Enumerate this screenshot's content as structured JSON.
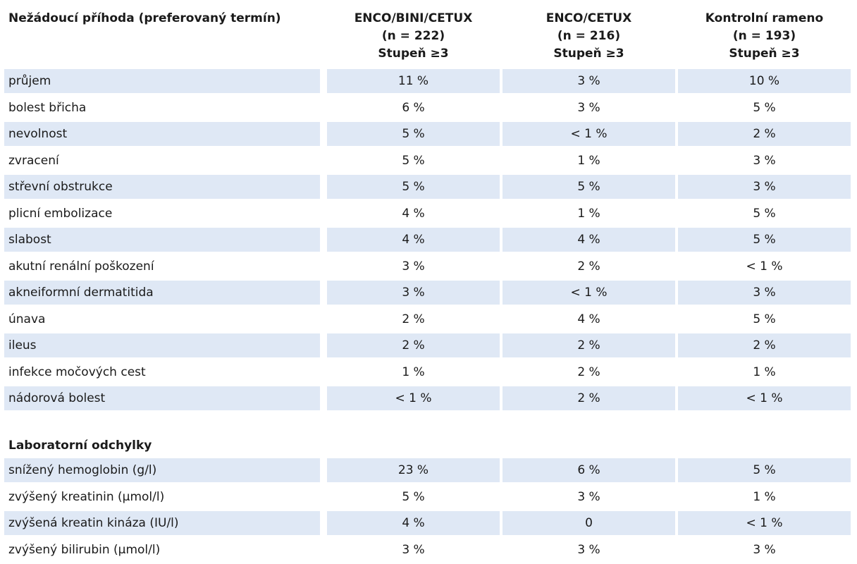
{
  "table": {
    "header": {
      "term": "Nežádoucí příhoda (preferovaný termín)",
      "columns": [
        {
          "line1": "ENCO/BINI/CETUX",
          "line2": "(n = 222)",
          "line3": "Stupeň ≥3"
        },
        {
          "line1": "ENCO/CETUX",
          "line2": "(n = 216)",
          "line3": "Stupeň ≥3"
        },
        {
          "line1": "Kontrolní rameno",
          "line2": "(n = 193)",
          "line3": "Stupeň ≥3"
        }
      ]
    },
    "rows": [
      {
        "name": "průjem",
        "v1": "11 %",
        "v2": "3 %",
        "v3": "10 %"
      },
      {
        "name": "bolest břicha",
        "v1": "6 %",
        "v2": "3 %",
        "v3": "5 %"
      },
      {
        "name": "nevolnost",
        "v1": "5 %",
        "v2": "< 1 %",
        "v3": "2 %"
      },
      {
        "name": "zvracení",
        "v1": "5 %",
        "v2": "1 %",
        "v3": "3 %"
      },
      {
        "name": "střevní obstrukce",
        "v1": "5 %",
        "v2": "5 %",
        "v3": "3 %"
      },
      {
        "name": "plicní embolizace",
        "v1": "4 %",
        "v2": "1 %",
        "v3": "5 %"
      },
      {
        "name": "slabost",
        "v1": "4 %",
        "v2": "4 %",
        "v3": "5 %"
      },
      {
        "name": "akutní renální poškození",
        "v1": "3 %",
        "v2": "2 %",
        "v3": "< 1 %"
      },
      {
        "name": "akneiformní dermatitida",
        "v1": "3 %",
        "v2": "< 1 %",
        "v3": "3 %"
      },
      {
        "name": "únava",
        "v1": "2 %",
        "v2": "4 %",
        "v3": "5 %"
      },
      {
        "name": "ileus",
        "v1": "2 %",
        "v2": "2 %",
        "v3": "2 %"
      },
      {
        "name": "infekce močových cest",
        "v1": "1 %",
        "v2": "2 %",
        "v3": "1 %"
      },
      {
        "name": "nádorová bolest",
        "v1": "< 1 %",
        "v2": "2 %",
        "v3": "< 1 %"
      }
    ],
    "lab_section": {
      "title": "Laboratorní odchylky",
      "rows": [
        {
          "name": "snížený hemoglobin (g/l)",
          "v1": "23 %",
          "v2": "6 %",
          "v3": "5 %"
        },
        {
          "name": "zvýšený kreatinin (μmol/l)",
          "v1": "5 %",
          "v2": "3 %",
          "v3": "1 %"
        },
        {
          "name": "zvýšená kreatin kináza (IU/l)",
          "v1": "4 %",
          "v2": "0",
          "v3": "< 1 %"
        },
        {
          "name": "zvýšený bilirubin (μmol/l)",
          "v1": "3 %",
          "v2": "3 %",
          "v3": "3 %"
        }
      ]
    },
    "colors": {
      "row_shade": "#dfe8f5",
      "text": "#1a1a1a"
    }
  }
}
